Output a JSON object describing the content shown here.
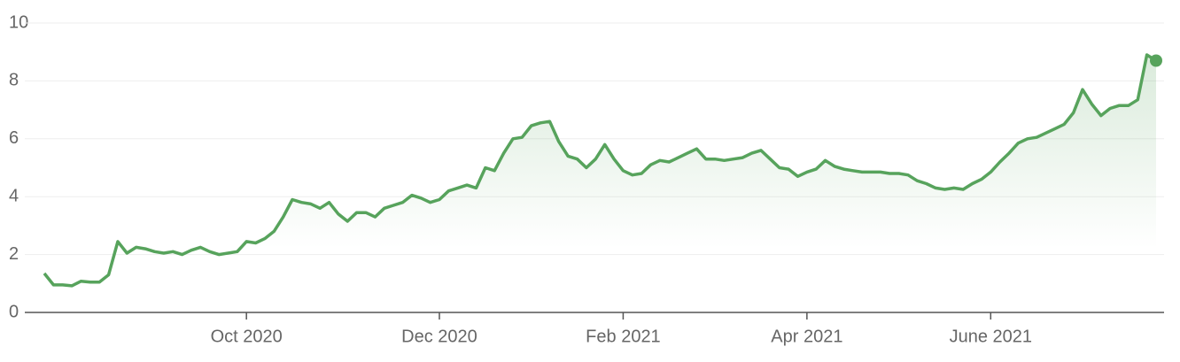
{
  "chart_data": {
    "type": "line",
    "categories": [
      null,
      null,
      null,
      null,
      null,
      null,
      null,
      null,
      null,
      null,
      null,
      null,
      null,
      null,
      null,
      null,
      null,
      null,
      null,
      null,
      null,
      null,
      "Oct 2020",
      null,
      null,
      null,
      null,
      null,
      null,
      null,
      null,
      null,
      null,
      null,
      null,
      null,
      null,
      null,
      null,
      null,
      null,
      null,
      null,
      "Dec 2020",
      null,
      null,
      null,
      null,
      null,
      null,
      null,
      null,
      null,
      null,
      null,
      null,
      null,
      null,
      null,
      null,
      null,
      null,
      null,
      "Feb 2021",
      null,
      null,
      null,
      null,
      null,
      null,
      null,
      null,
      null,
      null,
      null,
      null,
      null,
      null,
      null,
      null,
      null,
      null,
      null,
      "Apr 2021",
      null,
      null,
      null,
      null,
      null,
      null,
      null,
      null,
      null,
      null,
      null,
      null,
      null,
      null,
      null,
      null,
      null,
      null,
      null,
      "June 2021",
      null,
      null,
      null,
      null,
      null,
      null,
      null,
      null,
      null,
      null,
      null,
      null,
      null,
      null,
      null,
      null,
      null,
      null
    ],
    "series": [
      {
        "color": "#57a35c",
        "values": [
          1.35,
          0.95,
          0.95,
          0.92,
          1.08,
          1.05,
          1.05,
          1.3,
          2.45,
          2.05,
          2.25,
          2.2,
          2.1,
          2.05,
          2.1,
          2.0,
          2.15,
          2.25,
          2.1,
          2.0,
          2.05,
          2.1,
          2.45,
          2.4,
          2.55,
          2.8,
          3.3,
          3.9,
          3.8,
          3.75,
          3.6,
          3.8,
          3.4,
          3.15,
          3.45,
          3.45,
          3.3,
          3.6,
          3.7,
          3.8,
          4.05,
          3.95,
          3.8,
          3.9,
          4.2,
          4.3,
          4.4,
          4.3,
          5.0,
          4.9,
          5.5,
          6.0,
          6.05,
          6.45,
          6.55,
          6.6,
          5.9,
          5.4,
          5.3,
          5.0,
          5.3,
          5.8,
          5.3,
          4.9,
          4.75,
          4.8,
          5.1,
          5.25,
          5.2,
          5.35,
          5.5,
          5.65,
          5.3,
          5.3,
          5.25,
          5.3,
          5.35,
          5.5,
          5.6,
          5.3,
          5.0,
          4.95,
          4.7,
          4.85,
          4.95,
          5.25,
          5.05,
          4.95,
          4.9,
          4.85,
          4.85,
          4.85,
          4.8,
          4.8,
          4.75,
          4.55,
          4.45,
          4.3,
          4.25,
          4.3,
          4.25,
          4.45,
          4.6,
          4.85,
          5.2,
          5.5,
          5.85,
          6.0,
          6.05,
          6.2,
          6.35,
          6.5,
          6.9,
          7.7,
          7.2,
          6.8,
          7.05,
          7.15,
          7.15,
          7.35,
          8.9,
          8.7
        ]
      }
    ],
    "ylim": [
      0,
      10
    ],
    "yticks": [
      0,
      2,
      4,
      6,
      8,
      10
    ],
    "grid": true,
    "area_fill": true,
    "last_point_marker": true
  }
}
